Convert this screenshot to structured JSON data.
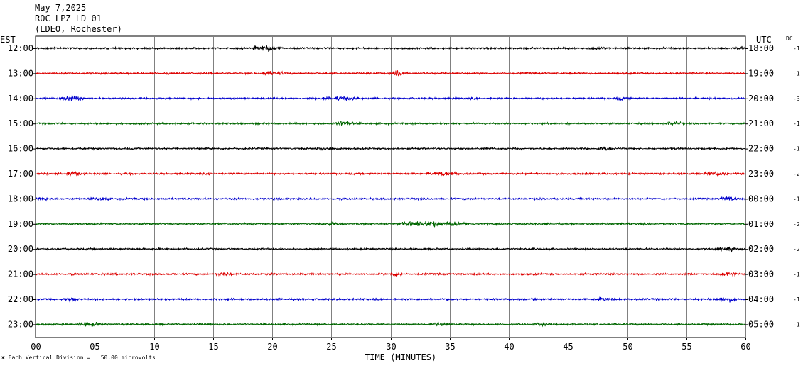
{
  "header": {
    "date": "May 7,2025",
    "station": "ROC LPZ LD 01",
    "network": "(LDEO, Rochester)"
  },
  "timezones": {
    "left": "EST",
    "right": "UTC",
    "dc": "DC"
  },
  "footer": {
    "mark": "ж",
    "division_note": "Each Vertical Division =   50.00 microvolts"
  },
  "chart_data": {
    "type": "line",
    "title": "",
    "xlabel": "TIME (MINUTES)",
    "xlim": [
      0,
      60
    ],
    "x_ticks": [
      "00",
      "05",
      "10",
      "15",
      "20",
      "25",
      "30",
      "35",
      "40",
      "45",
      "50",
      "55",
      "60"
    ],
    "trace_colors": [
      "#000000",
      "#dd0000",
      "#0000cc",
      "#006600"
    ],
    "rows": [
      {
        "est": "12:00",
        "utc": "18:00",
        "dc": "-1",
        "color": "#000000",
        "bursts": [
          [
            19.5,
            1.2,
            2.4
          ],
          [
            47.5,
            0.8,
            1.4
          ],
          [
            59.5,
            0.5,
            1.5
          ]
        ]
      },
      {
        "est": "13:00",
        "utc": "19:00",
        "dc": "-1",
        "color": "#dd0000",
        "bursts": [
          [
            20.0,
            1.0,
            1.9
          ],
          [
            30.5,
            0.6,
            2.2
          ]
        ]
      },
      {
        "est": "14:00",
        "utc": "20:00",
        "dc": "-3",
        "color": "#0000cc",
        "bursts": [
          [
            3.0,
            1.2,
            2.0
          ],
          [
            26.0,
            1.5,
            1.6
          ],
          [
            49.5,
            0.6,
            1.4
          ]
        ]
      },
      {
        "est": "15:00",
        "utc": "21:00",
        "dc": "-1",
        "color": "#006600",
        "bursts": [
          [
            26.0,
            1.0,
            1.8
          ],
          [
            54.0,
            0.8,
            1.4
          ]
        ]
      },
      {
        "est": "16:00",
        "utc": "22:00",
        "dc": "-1",
        "color": "#000000",
        "bursts": [
          [
            24.5,
            0.8,
            1.6
          ],
          [
            48.0,
            0.6,
            1.6
          ]
        ]
      },
      {
        "est": "17:00",
        "utc": "23:00",
        "dc": "-2",
        "color": "#dd0000",
        "bursts": [
          [
            3.2,
            0.7,
            1.8
          ],
          [
            34.5,
            1.5,
            1.5
          ],
          [
            57.5,
            1.0,
            1.6
          ]
        ]
      },
      {
        "est": "18:00",
        "utc": "00:00",
        "dc": "-1",
        "color": "#0000cc",
        "bursts": [
          [
            0.5,
            0.6,
            1.6
          ],
          [
            5.5,
            0.6,
            1.4
          ],
          [
            58.5,
            0.8,
            1.6
          ]
        ]
      },
      {
        "est": "19:00",
        "utc": "01:00",
        "dc": "-2",
        "color": "#006600",
        "bursts": [
          [
            25.0,
            0.8,
            1.5
          ],
          [
            33.5,
            3.0,
            2.1
          ]
        ]
      },
      {
        "est": "20:00",
        "utc": "02:00",
        "dc": "-2",
        "color": "#000000",
        "bursts": [
          [
            58.5,
            1.0,
            1.6
          ]
        ]
      },
      {
        "est": "21:00",
        "utc": "03:00",
        "dc": "-1",
        "color": "#dd0000",
        "bursts": [
          [
            16.0,
            0.8,
            1.5
          ],
          [
            30.5,
            0.6,
            1.6
          ],
          [
            58.5,
            0.8,
            1.6
          ]
        ]
      },
      {
        "est": "22:00",
        "utc": "04:00",
        "dc": "-1",
        "color": "#0000cc",
        "bursts": [
          [
            3.0,
            0.6,
            1.4
          ],
          [
            48.0,
            0.8,
            1.6
          ],
          [
            58.5,
            1.0,
            1.8
          ]
        ]
      },
      {
        "est": "23:00",
        "utc": "05:00",
        "dc": "-1",
        "color": "#006600",
        "bursts": [
          [
            4.5,
            1.2,
            1.8
          ],
          [
            34.0,
            0.8,
            1.6
          ],
          [
            42.5,
            0.8,
            1.5
          ]
        ]
      }
    ]
  }
}
